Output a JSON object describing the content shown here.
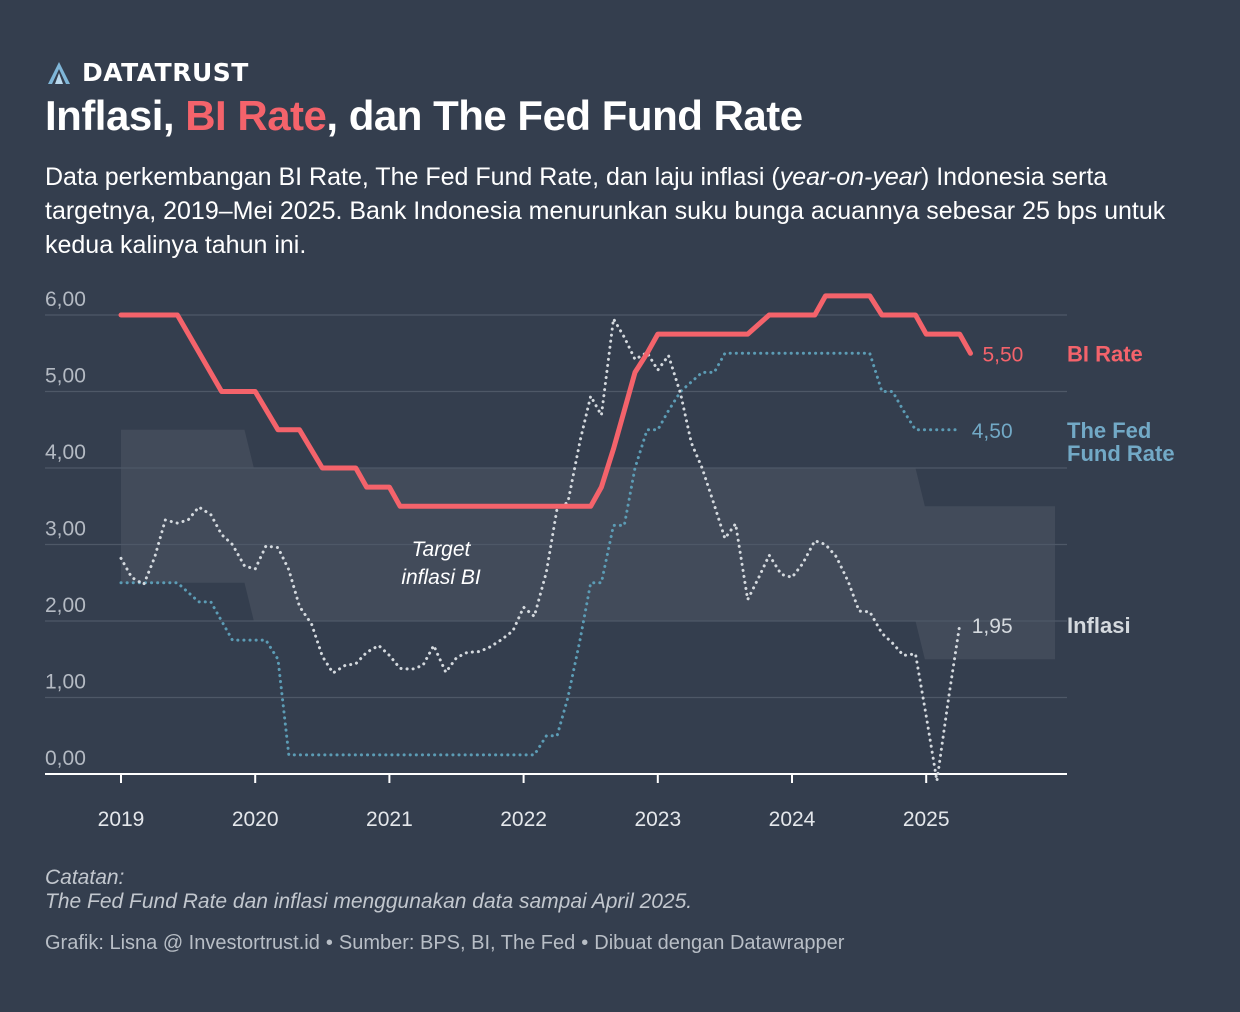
{
  "brand": {
    "name": "DATATRUST",
    "logo_icon": "datatrust-logo-icon"
  },
  "header": {
    "title_pre": "Inflasi, ",
    "title_highlight": "BI Rate",
    "title_post": ", dan The Fed Fund Rate",
    "description_1": "Data perkembangan BI Rate, The Fed Fund Rate, dan laju inflasi (",
    "description_italic": "year-on-year",
    "description_2": ") Indonesia serta targetnya, 2019–Mei 2025. Bank Indonesia menurunkan suku bunga acuannya sebesar 25 bps untuk kedua kalinya tahun ini."
  },
  "colors": {
    "background": "#343e4e",
    "bi_rate": "#f4636b",
    "fed": "#5c9cb5",
    "fed_label": "#72a9c6",
    "inflation": "#d4d9de",
    "target_band": "#424b5a",
    "grid": "#4e5867"
  },
  "chart_data": {
    "type": "line",
    "title": "Inflasi, BI Rate, dan The Fed Fund Rate",
    "xlabel": "",
    "ylabel": "",
    "x_range": [
      2018.55,
      2025.98
    ],
    "ylim": [
      0,
      6.2
    ],
    "y_ticks": [
      0,
      1,
      2,
      3,
      4,
      5,
      6
    ],
    "y_tick_labels": [
      "0,00",
      "1,00",
      "2,00",
      "3,00",
      "4,00",
      "5,00",
      "6,00"
    ],
    "x_ticks": [
      2019,
      2020,
      2021,
      2022,
      2023,
      2024,
      2025
    ],
    "x_tick_labels": [
      "2019",
      "2020",
      "2021",
      "2022",
      "2023",
      "2024",
      "2025"
    ],
    "target_band": {
      "label_line1": "Target",
      "label_line2": "inflasi BI",
      "segments": [
        {
          "from": 2019.0,
          "to": 2019.92,
          "low": 2.5,
          "high": 4.5
        },
        {
          "from": 2019.99,
          "to": 2024.92,
          "low": 2.0,
          "high": 4.0
        },
        {
          "from": 2024.99,
          "to": 2025.96,
          "low": 1.5,
          "high": 3.5
        }
      ]
    },
    "series": [
      {
        "name": "BI Rate",
        "style": "solid",
        "end_label": "5,50",
        "points": [
          [
            2019.0,
            6.0
          ],
          [
            2019.42,
            6.0
          ],
          [
            2019.75,
            5.0
          ],
          [
            2020.0,
            5.0
          ],
          [
            2020.17,
            4.5
          ],
          [
            2020.33,
            4.5
          ],
          [
            2020.5,
            4.0
          ],
          [
            2020.75,
            4.0
          ],
          [
            2020.83,
            3.75
          ],
          [
            2021.0,
            3.75
          ],
          [
            2021.08,
            3.5
          ],
          [
            2022.5,
            3.5
          ],
          [
            2022.58,
            3.75
          ],
          [
            2022.67,
            4.25
          ],
          [
            2022.75,
            4.75
          ],
          [
            2022.83,
            5.25
          ],
          [
            2022.92,
            5.5
          ],
          [
            2023.0,
            5.75
          ],
          [
            2023.67,
            5.75
          ],
          [
            2023.83,
            6.0
          ],
          [
            2024.17,
            6.0
          ],
          [
            2024.25,
            6.25
          ],
          [
            2024.58,
            6.25
          ],
          [
            2024.67,
            6.0
          ],
          [
            2024.92,
            6.0
          ],
          [
            2025.0,
            5.75
          ],
          [
            2025.25,
            5.75
          ],
          [
            2025.33,
            5.5
          ]
        ]
      },
      {
        "name": "The Fed Fund Rate",
        "style": "dotted",
        "end_label": "4,50",
        "points": [
          [
            2019.0,
            2.5
          ],
          [
            2019.42,
            2.5
          ],
          [
            2019.58,
            2.25
          ],
          [
            2019.67,
            2.25
          ],
          [
            2019.75,
            2.0
          ],
          [
            2019.83,
            1.75
          ],
          [
            2020.08,
            1.75
          ],
          [
            2020.17,
            1.5
          ],
          [
            2020.25,
            0.25
          ],
          [
            2022.08,
            0.25
          ],
          [
            2022.17,
            0.5
          ],
          [
            2022.25,
            0.5
          ],
          [
            2022.33,
            1.0
          ],
          [
            2022.42,
            1.75
          ],
          [
            2022.5,
            2.5
          ],
          [
            2022.58,
            2.5
          ],
          [
            2022.67,
            3.25
          ],
          [
            2022.75,
            3.25
          ],
          [
            2022.83,
            4.0
          ],
          [
            2022.92,
            4.5
          ],
          [
            2023.0,
            4.5
          ],
          [
            2023.08,
            4.75
          ],
          [
            2023.17,
            5.0
          ],
          [
            2023.33,
            5.25
          ],
          [
            2023.42,
            5.25
          ],
          [
            2023.5,
            5.5
          ],
          [
            2024.58,
            5.5
          ],
          [
            2024.67,
            5.0
          ],
          [
            2024.75,
            5.0
          ],
          [
            2024.83,
            4.75
          ],
          [
            2024.92,
            4.5
          ],
          [
            2025.25,
            4.5
          ]
        ]
      },
      {
        "name": "Inflasi",
        "style": "dotted",
        "end_label": "1,95",
        "points": [
          [
            2019.0,
            2.82
          ],
          [
            2019.08,
            2.57
          ],
          [
            2019.17,
            2.48
          ],
          [
            2019.25,
            2.83
          ],
          [
            2019.33,
            3.32
          ],
          [
            2019.42,
            3.28
          ],
          [
            2019.5,
            3.32
          ],
          [
            2019.58,
            3.49
          ],
          [
            2019.67,
            3.39
          ],
          [
            2019.75,
            3.13
          ],
          [
            2019.83,
            3.0
          ],
          [
            2019.92,
            2.72
          ],
          [
            2020.0,
            2.68
          ],
          [
            2020.08,
            2.98
          ],
          [
            2020.17,
            2.96
          ],
          [
            2020.25,
            2.67
          ],
          [
            2020.33,
            2.19
          ],
          [
            2020.42,
            1.96
          ],
          [
            2020.5,
            1.54
          ],
          [
            2020.58,
            1.32
          ],
          [
            2020.67,
            1.42
          ],
          [
            2020.75,
            1.44
          ],
          [
            2020.83,
            1.59
          ],
          [
            2020.92,
            1.68
          ],
          [
            2021.0,
            1.55
          ],
          [
            2021.08,
            1.38
          ],
          [
            2021.17,
            1.37
          ],
          [
            2021.25,
            1.42
          ],
          [
            2021.33,
            1.68
          ],
          [
            2021.42,
            1.33
          ],
          [
            2021.5,
            1.52
          ],
          [
            2021.58,
            1.59
          ],
          [
            2021.67,
            1.6
          ],
          [
            2021.75,
            1.66
          ],
          [
            2021.83,
            1.75
          ],
          [
            2021.92,
            1.87
          ],
          [
            2022.0,
            2.18
          ],
          [
            2022.08,
            2.06
          ],
          [
            2022.17,
            2.64
          ],
          [
            2022.25,
            3.47
          ],
          [
            2022.33,
            3.55
          ],
          [
            2022.42,
            4.35
          ],
          [
            2022.5,
            4.94
          ],
          [
            2022.58,
            4.69
          ],
          [
            2022.67,
            5.95
          ],
          [
            2022.75,
            5.71
          ],
          [
            2022.83,
            5.42
          ],
          [
            2022.92,
            5.51
          ],
          [
            2023.0,
            5.28
          ],
          [
            2023.08,
            5.47
          ],
          [
            2023.17,
            4.97
          ],
          [
            2023.25,
            4.33
          ],
          [
            2023.33,
            4.0
          ],
          [
            2023.42,
            3.52
          ],
          [
            2023.5,
            3.08
          ],
          [
            2023.58,
            3.27
          ],
          [
            2023.67,
            2.28
          ],
          [
            2023.75,
            2.56
          ],
          [
            2023.83,
            2.86
          ],
          [
            2023.92,
            2.61
          ],
          [
            2024.0,
            2.57
          ],
          [
            2024.08,
            2.75
          ],
          [
            2024.17,
            3.05
          ],
          [
            2024.25,
            3.0
          ],
          [
            2024.33,
            2.84
          ],
          [
            2024.42,
            2.51
          ],
          [
            2024.5,
            2.13
          ],
          [
            2024.58,
            2.12
          ],
          [
            2024.67,
            1.84
          ],
          [
            2024.75,
            1.71
          ],
          [
            2024.83,
            1.55
          ],
          [
            2024.92,
            1.57
          ],
          [
            2025.0,
            0.76
          ],
          [
            2025.08,
            -0.09
          ],
          [
            2025.17,
            1.03
          ],
          [
            2025.25,
            1.95
          ]
        ]
      }
    ],
    "legend": [
      {
        "series": "BI Rate",
        "label_lines": [
          "BI Rate"
        ]
      },
      {
        "series": "The Fed Fund Rate",
        "label_lines": [
          "The Fed",
          "Fund Rate"
        ]
      },
      {
        "series": "Inflasi",
        "label_lines": [
          "Inflasi"
        ]
      }
    ]
  },
  "notes": {
    "heading": "Catatan:",
    "text": "The Fed Fund Rate dan inflasi menggunakan data sampai April 2025."
  },
  "credits": {
    "author": "Grafik: Lisna @ Investortrust.id",
    "source": "Sumber: BPS, BI, The Fed",
    "tool": "Dibuat dengan Datawrapper",
    "separator": "•"
  }
}
